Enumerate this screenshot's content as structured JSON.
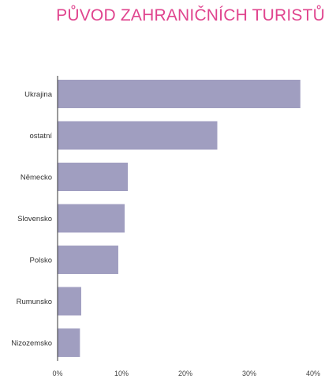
{
  "colors": {
    "title": "#e0448e",
    "bar": "#a09ec0",
    "axis": "#333333"
  },
  "chart_data": {
    "type": "bar",
    "orientation": "horizontal",
    "title": "PŮVOD ZAHRANIČNÍCH TURISTŮ",
    "categories": [
      "Ukrajina",
      "ostatní",
      "Německo",
      "Slovensko",
      "Polsko",
      "Rumunsko",
      "Nizozemsko"
    ],
    "values": [
      38,
      25,
      11,
      10.5,
      9.5,
      3.7,
      3.5
    ],
    "value_unit": "%",
    "xlim": [
      0,
      40
    ],
    "x_ticks": [
      "0%",
      "10%",
      "20%",
      "30%",
      "40%"
    ],
    "grid": false,
    "legend": "none"
  }
}
